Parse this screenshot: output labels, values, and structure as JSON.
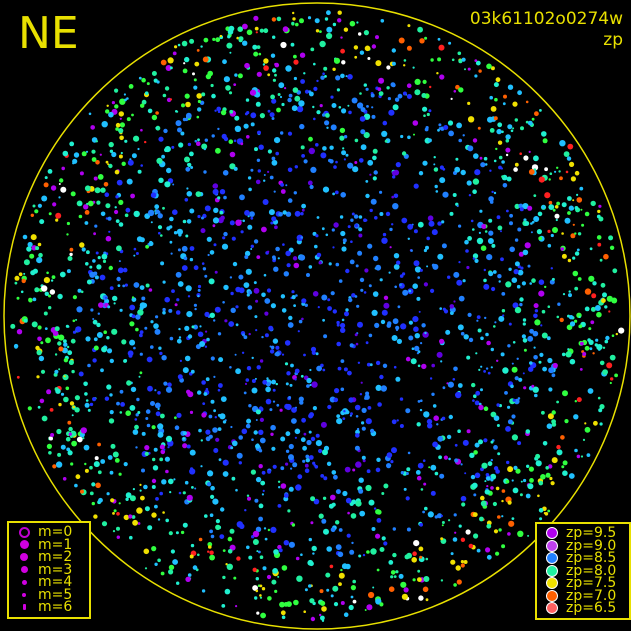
{
  "direction_label": "NE",
  "image_id": "03k61102o0274w",
  "color_quantity": "zp",
  "colors": {
    "frame": "#e8e000",
    "background": "#000000"
  },
  "magnitude_legend": [
    {
      "label": "m=0",
      "symbol": "open-circle"
    },
    {
      "label": "m=1",
      "symbol": "filled-circle"
    },
    {
      "label": "m=2",
      "symbol": "filled-circle"
    },
    {
      "label": "m=3",
      "symbol": "filled-circle"
    },
    {
      "label": "m=4",
      "symbol": "filled-circle"
    },
    {
      "label": "m=5",
      "symbol": "filled-circle"
    },
    {
      "label": "m=6",
      "symbol": "filled-circle"
    }
  ],
  "zp_legend": [
    {
      "label": "zp=9.5",
      "color": "#b000f0"
    },
    {
      "label": "zp=9.0",
      "color": "#c040f0"
    },
    {
      "label": "zp=8.5",
      "color": "#2080ff"
    },
    {
      "label": "zp=8.0",
      "color": "#20f0a0"
    },
    {
      "label": "zp=7.5",
      "color": "#f0e000"
    },
    {
      "label": "zp=7.0",
      "color": "#ff6000"
    },
    {
      "label": "zp=6.5",
      "color": "#ff6060"
    }
  ],
  "chart_data": {
    "type": "scatter",
    "title": "",
    "legend": [
      "bottom-left",
      "bottom-right"
    ],
    "note_points": "several thousand stars, colour by zp, size by magnitude"
  }
}
